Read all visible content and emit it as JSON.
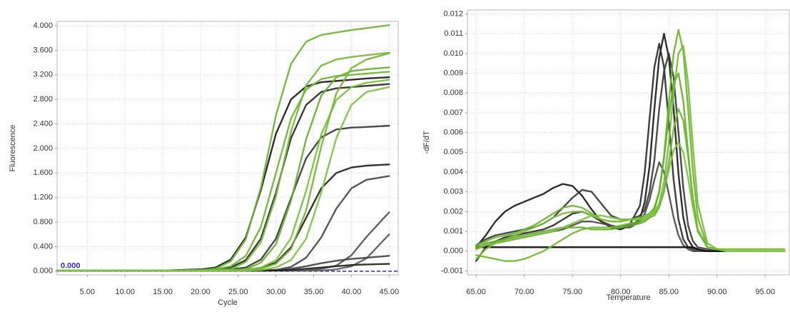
{
  "chart_data": [
    {
      "type": "line",
      "xlabel": "Cycle",
      "ylabel": "Fluorescence",
      "x": [
        1,
        5,
        10,
        15,
        20,
        22,
        24,
        26,
        28,
        30,
        32,
        34,
        36,
        38,
        40,
        42,
        45
      ],
      "series": [
        {
          "color": "#1c1c1c",
          "values": [
            0.01,
            0.01,
            0.01,
            0.01,
            0.03,
            0.06,
            0.19,
            0.55,
            1.32,
            2.24,
            2.8,
            3.01,
            3.08,
            3.1,
            3.12,
            3.14,
            3.16
          ]
        },
        {
          "color": "#2a2a2a",
          "values": [
            0.01,
            0.01,
            0.01,
            0.01,
            0.01,
            0.03,
            0.06,
            0.18,
            0.53,
            1.28,
            2.17,
            2.71,
            2.92,
            2.98,
            3.0,
            3.02,
            3.05
          ]
        },
        {
          "color": "#3a3a3a",
          "values": [
            0.01,
            0.01,
            0.01,
            0.01,
            0.01,
            0.01,
            0.03,
            0.06,
            0.19,
            0.53,
            1.19,
            1.84,
            2.18,
            2.31,
            2.34,
            2.35,
            2.37
          ]
        },
        {
          "color": "#222222",
          "values": [
            0.01,
            0.01,
            0.01,
            0.01,
            0.01,
            0.01,
            0.01,
            0.02,
            0.05,
            0.14,
            0.39,
            0.87,
            1.35,
            1.6,
            1.69,
            1.72,
            1.74
          ]
        },
        {
          "color": "#4a4a4a",
          "values": [
            0.01,
            0.01,
            0.01,
            0.01,
            0.01,
            0.01,
            0.01,
            0.01,
            0.01,
            0.02,
            0.07,
            0.22,
            0.55,
            1.02,
            1.35,
            1.49,
            1.55
          ]
        },
        {
          "color": "#555555",
          "values": [
            0.01,
            0.01,
            0.01,
            0.01,
            0.01,
            0.01,
            0.01,
            0.01,
            0.01,
            0.01,
            0.01,
            0.01,
            0.04,
            0.09,
            0.26,
            0.56,
            0.96
          ]
        },
        {
          "color": "#5c5c5c",
          "values": [
            0.01,
            0.01,
            0.01,
            0.01,
            0.01,
            0.01,
            0.01,
            0.01,
            0.01,
            0.01,
            0.01,
            0.01,
            0.01,
            0.03,
            0.08,
            0.21,
            0.6
          ]
        },
        {
          "color": "#444444",
          "values": [
            0.01,
            0.01,
            0.01,
            0.01,
            0.01,
            0.01,
            0.01,
            0.01,
            0.01,
            0.02,
            0.04,
            0.08,
            0.13,
            0.17,
            0.2,
            0.22,
            0.25
          ]
        },
        {
          "color": "#222222",
          "values": [
            0.01,
            0.01,
            0.01,
            0.01,
            0.01,
            0.01,
            0.01,
            0.01,
            0.01,
            0.01,
            0.02,
            0.04,
            0.06,
            0.08,
            0.1,
            0.11,
            0.12
          ]
        },
        {
          "color": "#6cb52f",
          "values": [
            0.01,
            0.01,
            0.01,
            0.01,
            0.02,
            0.04,
            0.16,
            0.52,
            1.36,
            2.54,
            3.38,
            3.74,
            3.85,
            3.89,
            3.93,
            3.96,
            4.01
          ]
        },
        {
          "color": "#74bc35",
          "values": [
            0.01,
            0.01,
            0.01,
            0.01,
            0.01,
            0.02,
            0.03,
            0.15,
            0.47,
            1.22,
            2.28,
            3.03,
            3.35,
            3.45,
            3.49,
            3.52,
            3.56
          ]
        },
        {
          "color": "#66b02a",
          "values": [
            0.01,
            0.01,
            0.01,
            0.01,
            0.01,
            0.01,
            0.02,
            0.03,
            0.14,
            0.44,
            1.15,
            2.15,
            2.86,
            3.16,
            3.26,
            3.29,
            3.32
          ]
        },
        {
          "color": "#7ac23b",
          "values": [
            0.01,
            0.01,
            0.01,
            0.01,
            0.01,
            0.01,
            0.01,
            0.02,
            0.06,
            0.18,
            0.54,
            1.31,
            2.23,
            2.79,
            3.0,
            3.07,
            3.12
          ]
        },
        {
          "color": "#6cb52f",
          "values": [
            0.01,
            0.01,
            0.01,
            0.01,
            0.01,
            0.03,
            0.08,
            0.25,
            0.72,
            1.6,
            2.49,
            2.96,
            3.13,
            3.18,
            3.2,
            3.22,
            3.25
          ]
        },
        {
          "color": "#70b832",
          "values": [
            0.01,
            0.01,
            0.01,
            0.01,
            0.01,
            0.01,
            0.01,
            0.01,
            0.04,
            0.12,
            0.36,
            0.99,
            2.03,
            2.9,
            3.31,
            3.45,
            3.55
          ]
        },
        {
          "color": "#7cc43e",
          "values": [
            0.01,
            0.01,
            0.01,
            0.01,
            0.01,
            0.01,
            0.01,
            0.01,
            0.02,
            0.06,
            0.18,
            0.53,
            1.28,
            2.17,
            2.71,
            2.92,
            3.0
          ]
        }
      ],
      "threshold": 0,
      "threshold_label": "0.000",
      "xlim": [
        1,
        46.2
      ],
      "ylim": [
        -0.06,
        4.07
      ],
      "xticks": [
        {
          "value": 5,
          "label": "5.00"
        },
        {
          "value": 10,
          "label": "10.00"
        },
        {
          "value": 15,
          "label": "15.00"
        },
        {
          "value": 20,
          "label": "20.00"
        },
        {
          "value": 25,
          "label": "25.00"
        },
        {
          "value": 30,
          "label": "30.00"
        },
        {
          "value": 35,
          "label": "35.00"
        },
        {
          "value": 40,
          "label": "40.00"
        },
        {
          "value": 45,
          "label": "45.00"
        }
      ],
      "yticks": [
        {
          "value": 0,
          "label": "0.000"
        },
        {
          "value": 0.4,
          "label": "0.400"
        },
        {
          "value": 0.8,
          "label": "0.800"
        },
        {
          "value": 1.2,
          "label": "1.200"
        },
        {
          "value": 1.6,
          "label": "1.600"
        },
        {
          "value": 2,
          "label": "2.000"
        },
        {
          "value": 2.4,
          "label": "2.400"
        },
        {
          "value": 2.8,
          "label": "2.800"
        },
        {
          "value": 3.2,
          "label": "3.200"
        },
        {
          "value": 3.6,
          "label": "3.600"
        },
        {
          "value": 4,
          "label": "4.000"
        }
      ],
      "grid": true
    },
    {
      "type": "line",
      "xlabel": "Temperature",
      "ylabel": "-dF/dT",
      "x": [
        65,
        66,
        67,
        68,
        69,
        70,
        71,
        72,
        73,
        74,
        75,
        76,
        77,
        78,
        79,
        80,
        81,
        82,
        82.5,
        83,
        83.5,
        84,
        84.5,
        85,
        85.5,
        86,
        86.5,
        87,
        87.5,
        88,
        89,
        90,
        91,
        92,
        93,
        94,
        95,
        96,
        97
      ],
      "series": [
        {
          "color": "#1c1c1c",
          "values": [
            0.0002,
            0.0008,
            0.0015,
            0.002,
            0.0023,
            0.0025,
            0.0027,
            0.0029,
            0.0032,
            0.0034,
            0.0033,
            0.0028,
            0.0021,
            0.0015,
            0.0012,
            0.0011,
            0.0013,
            0.0016,
            0.0025,
            0.0043,
            0.0072,
            0.0098,
            0.011,
            0.0098,
            0.0072,
            0.0039,
            0.0017,
            0.0006,
            0.0002,
            0.0001,
            0,
            0,
            0,
            0,
            0,
            0,
            0,
            0,
            0
          ]
        },
        {
          "color": "#2e2e2e",
          "values": [
            -0.0005,
            0.0002,
            0.0005,
            0.0007,
            0.0008,
            0.0009,
            0.001,
            0.0011,
            0.0013,
            0.0016,
            0.0019,
            0.002,
            0.0018,
            0.0015,
            0.0013,
            0.0012,
            0.0014,
            0.0023,
            0.004,
            0.0067,
            0.0093,
            0.0105,
            0.0093,
            0.0065,
            0.0036,
            0.0016,
            0.0006,
            0.0002,
            0.0001,
            0,
            0,
            0,
            0,
            0,
            0,
            0,
            0,
            0,
            0
          ]
        },
        {
          "color": "#3c3c3c",
          "values": [
            0.0003,
            0.0006,
            0.0008,
            0.0009,
            0.001,
            0.0011,
            0.0012,
            0.0014,
            0.0017,
            0.0022,
            0.0027,
            0.0031,
            0.003,
            0.0024,
            0.0018,
            0.0016,
            0.0016,
            0.0018,
            0.0021,
            0.003,
            0.0046,
            0.0072,
            0.0091,
            0.01,
            0.0088,
            0.006,
            0.0032,
            0.0013,
            0.0005,
            0.0002,
            0.0001,
            0,
            0,
            0,
            0,
            0,
            0,
            0,
            0
          ]
        },
        {
          "color": "#4d4d4d",
          "values": [
            0.0001,
            0.0003,
            0.0004,
            0.0005,
            0.0006,
            0.0007,
            0.0008,
            0.0009,
            0.001,
            0.0011,
            0.0013,
            0.0015,
            0.0015,
            0.0014,
            0.0013,
            0.0012,
            0.0012,
            0.0015,
            0.0019,
            0.0026,
            0.0036,
            0.0045,
            0.004,
            0.0029,
            0.0017,
            0.0008,
            0.0003,
            0.0001,
            0,
            0,
            0,
            0,
            0,
            0,
            0,
            0,
            0,
            0,
            0
          ]
        },
        {
          "color": "#111111",
          "values": [
            0.0002,
            0.0002,
            0.0002,
            0.0002,
            0.0002,
            0.0002,
            0.0002,
            0.0002,
            0.0002,
            0.0002,
            0.0002,
            0.0002,
            0.0002,
            0.0002,
            0.0002,
            0.0002,
            0.0002,
            0.0002,
            0.0002,
            0.0002,
            0.0002,
            0.0002,
            0.0002,
            0.0002,
            0.0002,
            0.0002,
            0.0002,
            0.0002,
            0.0002,
            0.0001,
            0,
            0,
            0,
            0,
            0,
            0,
            0,
            0,
            0
          ]
        },
        {
          "color": "#6cb52f",
          "values": [
            0.0003,
            0.0005,
            0.0007,
            0.0008,
            0.0009,
            0.0011,
            0.0013,
            0.0016,
            0.0019,
            0.0022,
            0.0023,
            0.0022,
            0.0019,
            0.0016,
            0.0015,
            0.0015,
            0.0016,
            0.0017,
            0.0018,
            0.0019,
            0.0022,
            0.003,
            0.0048,
            0.0075,
            0.01,
            0.0112,
            0.0101,
            0.0072,
            0.004,
            0.0017,
            0.0002,
            0.0001,
            0,
            0,
            0,
            0,
            0,
            0,
            0
          ]
        },
        {
          "color": "#76bd37",
          "values": [
            -0.0004,
            0.0001,
            0.0004,
            0.0006,
            0.0008,
            0.001,
            0.0012,
            0.0014,
            0.0017,
            0.0019,
            0.002,
            0.002,
            0.0018,
            0.0016,
            0.0015,
            0.0015,
            0.0016,
            0.0016,
            0.0017,
            0.0018,
            0.0019,
            0.0024,
            0.0035,
            0.0055,
            0.008,
            0.01,
            0.0104,
            0.0085,
            0.0053,
            0.0024,
            0.0004,
            0.0001,
            0,
            0,
            0,
            0,
            0,
            0,
            0
          ]
        },
        {
          "color": "#66b02a",
          "values": [
            0.0002,
            0.0004,
            0.0005,
            0.0006,
            0.0007,
            0.0008,
            0.0009,
            0.001,
            0.0011,
            0.0012,
            0.0012,
            0.0012,
            0.0011,
            0.0011,
            0.0011,
            0.0012,
            0.0013,
            0.0014,
            0.0015,
            0.0017,
            0.0021,
            0.003,
            0.0047,
            0.0068,
            0.0085,
            0.009,
            0.0076,
            0.005,
            0.0025,
            0.001,
            0.0002,
            0.0001,
            0,
            0,
            0,
            0,
            0,
            0,
            0
          ]
        },
        {
          "color": "#7cc43e",
          "values": [
            0.0001,
            0.0003,
            0.0004,
            0.0005,
            0.0006,
            0.0007,
            0.0008,
            0.0009,
            0.001,
            0.0012,
            0.0014,
            0.0016,
            0.0018,
            0.0018,
            0.0017,
            0.0016,
            0.0016,
            0.0016,
            0.0017,
            0.0018,
            0.002,
            0.0024,
            0.0031,
            0.0041,
            0.0051,
            0.0055,
            0.005,
            0.0037,
            0.0022,
            0.001,
            0.0002,
            0.0001,
            0,
            0,
            0,
            0,
            0,
            0,
            0
          ]
        },
        {
          "color": "#70b832",
          "values": [
            -0.0002,
            -0.0003,
            -0.0004,
            -0.0005,
            -0.0005,
            -0.0004,
            -0.0002,
            0,
            0.0003,
            0.0006,
            0.0009,
            0.0011,
            0.0012,
            0.0012,
            0.0012,
            0.0013,
            0.0014,
            0.0015,
            0.0016,
            0.0017,
            0.0018,
            0.0022,
            0.003,
            0.0045,
            0.0062,
            0.0072,
            0.0066,
            0.0048,
            0.0027,
            0.0011,
            0.0002,
            0.0001,
            0.0001,
            0.0001,
            0.0001,
            0.0001,
            0.0001,
            0.0001,
            0.0001
          ]
        }
      ],
      "xlim": [
        64.1,
        97.5
      ],
      "ylim": [
        -0.0012,
        0.0122
      ],
      "xticks": [
        {
          "value": 65,
          "label": "65.00"
        },
        {
          "value": 70,
          "label": "70.00"
        },
        {
          "value": 75,
          "label": "75.00"
        },
        {
          "value": 80,
          "label": "80.00"
        },
        {
          "value": 85,
          "label": "85.00"
        },
        {
          "value": 90,
          "label": "90.00"
        },
        {
          "value": 95,
          "label": "95.00"
        }
      ],
      "yticks": [
        -0.001,
        {
          "value": 0,
          "label": "0.000"
        },
        0.001,
        0.002,
        0.003,
        0.004,
        0.005,
        0.006,
        0.007,
        0.008,
        0.009,
        {
          "value": 0.01,
          "label": "0.010"
        },
        0.011,
        0.012
      ],
      "grid": true
    }
  ]
}
